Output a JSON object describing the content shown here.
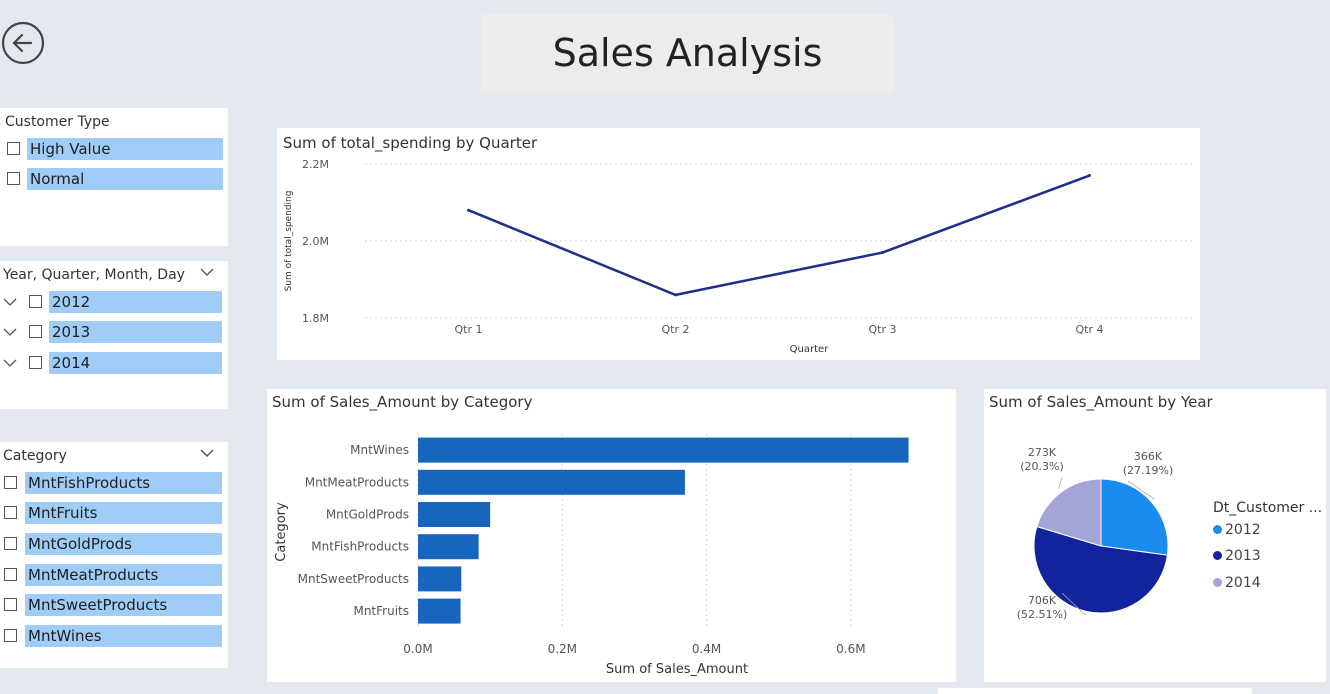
{
  "page": {
    "title": "Sales Analysis"
  },
  "colors": {
    "accent": "#1f4e9c",
    "bar": "#1666be",
    "selection": "#9fcdf8"
  },
  "slicers": {
    "customer_type": {
      "title": "Customer Type",
      "items": [
        "High Value",
        "Normal"
      ]
    },
    "date": {
      "title": "Year, Quarter, Month, Day",
      "items": [
        "2012",
        "2013",
        "2014"
      ]
    },
    "category": {
      "title": "Category",
      "items": [
        "MntFishProducts",
        "MntFruits",
        "MntGoldProds",
        "MntMeatProducts",
        "MntSweetProducts",
        "MntWines"
      ]
    }
  },
  "chart_data": [
    {
      "type": "line",
      "title": "Sum of total_spending by Quarter",
      "xlabel": "Quarter",
      "ylabel": "Sum of total_spending",
      "categories": [
        "Qtr 1",
        "Qtr 2",
        "Qtr 3",
        "Qtr 4"
      ],
      "values": [
        2.08,
        1.86,
        1.97,
        2.17
      ],
      "value_unit": "M",
      "ylim": [
        1.8,
        2.2
      ],
      "yticks": [
        "1.8M",
        "2.0M",
        "2.2M"
      ],
      "grid": true,
      "color": "#1f2f8a"
    },
    {
      "type": "bar",
      "orientation": "horizontal",
      "title": "Sum of Sales_Amount by Category",
      "xlabel": "Sum of Sales_Amount",
      "ylabel": "Category",
      "categories": [
        "MntWines",
        "MntMeatProducts",
        "MntGoldProds",
        "MntFishProducts",
        "MntSweetProducts",
        "MntFruits"
      ],
      "values": [
        0.68,
        0.37,
        0.1,
        0.084,
        0.06,
        0.059
      ],
      "value_unit": "M",
      "xlim": [
        0,
        0.7
      ],
      "xticks": [
        "0.0M",
        "0.2M",
        "0.4M",
        "0.6M"
      ],
      "grid": true,
      "color": "#1666be"
    },
    {
      "type": "pie",
      "title": "Sum of Sales_Amount by Year",
      "legend_title": "Dt_Customer ...",
      "legend_position": "right",
      "slices": [
        {
          "name": "2012",
          "value": "366K",
          "percent": "(27.19%)",
          "fraction": 0.2719,
          "color": "#1a8cf0"
        },
        {
          "name": "2013",
          "value": "706K",
          "percent": "(52.51%)",
          "fraction": 0.5251,
          "color": "#12239e"
        },
        {
          "name": "2014",
          "value": "273K",
          "percent": "(20.3%)",
          "fraction": 0.203,
          "color": "#a3a5d6"
        }
      ]
    }
  ]
}
